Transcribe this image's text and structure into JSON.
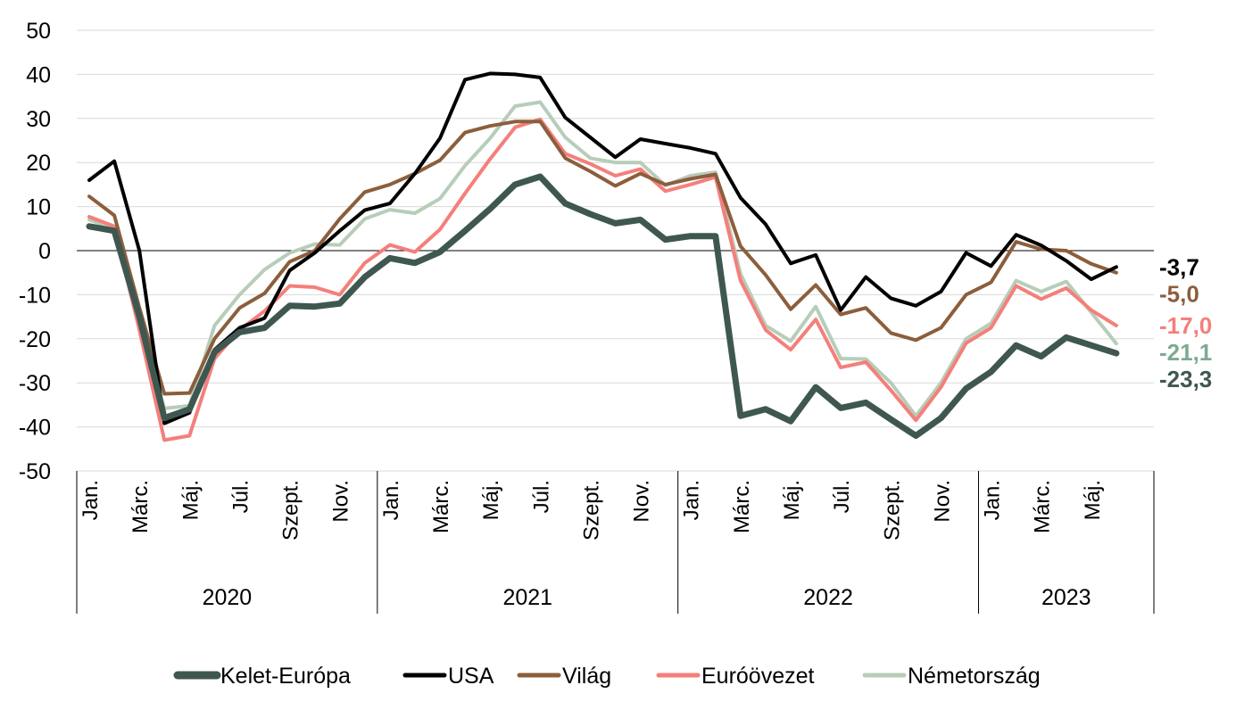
{
  "chart_data": {
    "type": "line",
    "title": "",
    "xlabel": "",
    "ylabel": "",
    "ylim": [
      -50,
      50
    ],
    "yticks": [
      50,
      40,
      30,
      20,
      10,
      0,
      -10,
      -20,
      -30,
      -40,
      -50
    ],
    "grid": true,
    "legend_position": "bottom",
    "x": [
      "2020-01",
      "2020-02",
      "2020-03",
      "2020-04",
      "2020-05",
      "2020-06",
      "2020-07",
      "2020-08",
      "2020-09",
      "2020-10",
      "2020-11",
      "2020-12",
      "2021-01",
      "2021-02",
      "2021-03",
      "2021-04",
      "2021-05",
      "2021-06",
      "2021-07",
      "2021-08",
      "2021-09",
      "2021-10",
      "2021-11",
      "2021-12",
      "2022-01",
      "2022-02",
      "2022-03",
      "2022-04",
      "2022-05",
      "2022-06",
      "2022-07",
      "2022-08",
      "2022-09",
      "2022-10",
      "2022-11",
      "2022-12",
      "2023-01",
      "2023-02",
      "2023-03",
      "2023-04",
      "2023-05",
      "2023-06",
      "2023-07"
    ],
    "x_tick_labels": [
      "Jan.",
      "",
      "Márc.",
      "",
      "Máj.",
      "",
      "Júl.",
      "",
      "Szept.",
      "",
      "Nov.",
      "",
      "Jan.",
      "",
      "Márc.",
      "",
      "Máj.",
      "",
      "Júl.",
      "",
      "Szept.",
      "",
      "Nov.",
      "",
      "Jan.",
      "",
      "Márc.",
      "",
      "Máj.",
      "",
      "Júl.",
      "",
      "Szept.",
      "",
      "Nov.",
      "",
      "Jan.",
      "",
      "Márc.",
      "",
      "Máj.",
      "",
      ""
    ],
    "year_groups": [
      {
        "label": "2020",
        "months": 12
      },
      {
        "label": "2021",
        "months": 12
      },
      {
        "label": "2022",
        "months": 12
      },
      {
        "label": "2023",
        "months": 7
      }
    ],
    "series": [
      {
        "name": "Kelet-Európa",
        "color": "#3f5751",
        "width": "thick",
        "end_label": "-23,3",
        "values": [
          5.5,
          4.5,
          -15,
          -38,
          -36,
          -23,
          -18.5,
          -17.5,
          -12.5,
          -12.7,
          -12,
          -6,
          -1.7,
          -2.8,
          -0.3,
          4.5,
          9.5,
          15,
          16.8,
          10.7,
          8.3,
          6.2,
          7,
          2.5,
          3.3,
          3.3,
          -37.5,
          -36,
          -38.7,
          -31,
          -35.7,
          -34.5,
          -38.3,
          -42,
          -38,
          -31.3,
          -27.5,
          -21.5,
          -24,
          -19.7,
          -21.5,
          -23.3,
          null
        ]
      },
      {
        "name": "USA",
        "color": "#000000",
        "width": "normal",
        "end_label": "-3,7",
        "values": [
          16,
          20.3,
          0,
          -39.2,
          -36.8,
          -22.5,
          -17.5,
          -15.3,
          -4.5,
          -0.5,
          4.5,
          9.2,
          10.7,
          17.5,
          25.5,
          38.8,
          40.2,
          40,
          39.3,
          30.2,
          25.7,
          21.2,
          25.3,
          24.3,
          23.3,
          22,
          12,
          6,
          -2.9,
          -1,
          -13.5,
          -6,
          -10.8,
          -12.5,
          -9.3,
          -0.5,
          -3.5,
          3.6,
          1.2,
          -2.3,
          -6.5,
          -3.7,
          null
        ]
      },
      {
        "name": "Világ",
        "color": "#8b5e3c",
        "width": "normal",
        "end_label": "-5,0",
        "values": [
          12.3,
          8,
          -13,
          -32.5,
          -32.3,
          -20,
          -13,
          -9.7,
          -2.5,
          0,
          7.2,
          13.3,
          15,
          17.5,
          20.5,
          26.8,
          28.3,
          29.3,
          29.3,
          21,
          18,
          14.7,
          17.5,
          15,
          16.3,
          17.3,
          1,
          -5.5,
          -13.3,
          -7.8,
          -14.5,
          -13,
          -18.7,
          -20.3,
          -17.5,
          -10,
          -7.2,
          2,
          0.3,
          0,
          -3,
          -5,
          null
        ]
      },
      {
        "name": "Euróövezet",
        "color": "#f47f7b",
        "width": "normal",
        "end_label": "-17,0",
        "values": [
          7.7,
          5.5,
          -18,
          -43,
          -42,
          -24.5,
          -18,
          -13.7,
          -8,
          -8.3,
          -10,
          -2.8,
          1.3,
          -0.3,
          4.8,
          13,
          20.8,
          28,
          29.8,
          22,
          19.7,
          17,
          18.5,
          13.5,
          15,
          16.7,
          -6.8,
          -18,
          -22.5,
          -15.6,
          -26.5,
          -25.3,
          -31.7,
          -38.5,
          -31,
          -21,
          -17.5,
          -8,
          -11,
          -8.5,
          -13.5,
          -17,
          null
        ]
      },
      {
        "name": "Németország",
        "color": "#b7cdb9",
        "width": "normal",
        "end_label": "-21,1",
        "values": [
          7,
          5,
          -16,
          -35.8,
          -35.2,
          -17,
          -10,
          -4.3,
          -0.5,
          1.5,
          1.3,
          7.2,
          9.3,
          8.5,
          11.8,
          19.3,
          25.5,
          32.8,
          33.7,
          25.7,
          21,
          20,
          20,
          14.8,
          17,
          17.8,
          -5.3,
          -17,
          -20.5,
          -12.7,
          -24.5,
          -24.6,
          -30,
          -37.5,
          -30,
          -20,
          -16.5,
          -6.8,
          -9.3,
          -7,
          -14,
          -21.1,
          null
        ]
      }
    ]
  },
  "legend": {
    "items": [
      {
        "label": "Kelet-Európa",
        "color": "#3f5751"
      },
      {
        "label": "USA",
        "color": "#000000"
      },
      {
        "label": "Világ",
        "color": "#8b5e3c"
      },
      {
        "label": "Euróövezet",
        "color": "#f47f7b"
      },
      {
        "label": "Németország",
        "color": "#b7cdb9"
      }
    ]
  }
}
